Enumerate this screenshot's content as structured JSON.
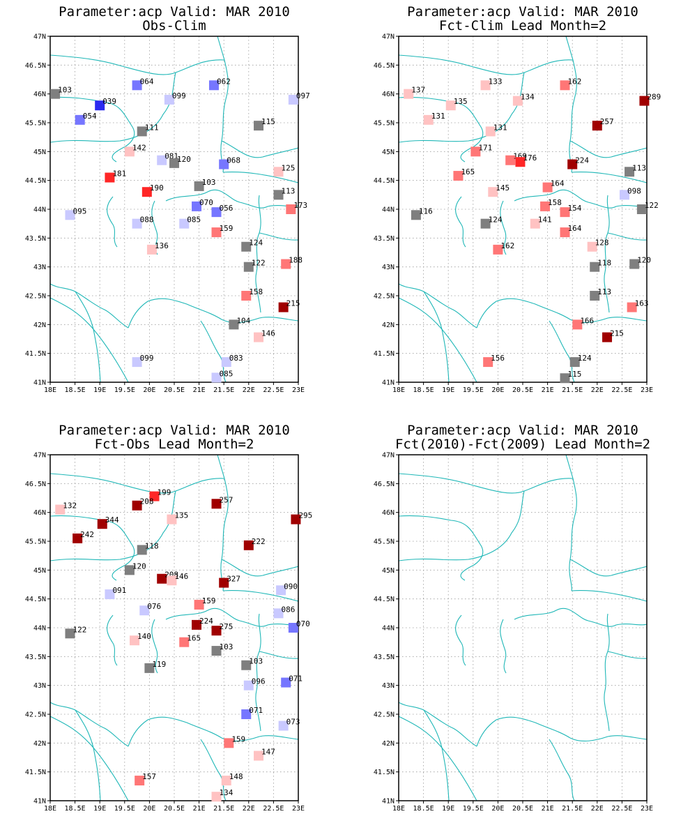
{
  "figure": {
    "lon_range": [
      18,
      23
    ],
    "lat_range": [
      41,
      47
    ],
    "x_ticks": [
      "18E",
      "18.5E",
      "19E",
      "19.5E",
      "20E",
      "20.5E",
      "21E",
      "21.5E",
      "22E",
      "22.5E",
      "23E"
    ],
    "y_ticks": [
      "41N",
      "41.5N",
      "42N",
      "42.5N",
      "43N",
      "43.5N",
      "44N",
      "44.5N",
      "45N",
      "45.5N",
      "46N",
      "46.5N",
      "47N"
    ],
    "grid": true,
    "colors": {
      "gray": "#7f7f7f",
      "blue_1": "#c9c9ff",
      "blue_2": "#7676ff",
      "blue_3": "#2a2af0",
      "red_1": "#ffc2c2",
      "red_2": "#ff7676",
      "red_3": "#ff2626",
      "red_4": "#a00000",
      "coast": "#1fb7b7"
    }
  },
  "panels": [
    {
      "title_line1": "Parameter:acp Valid: MAR 2010",
      "title_line2": "Obs-Clim",
      "stations": [
        {
          "lon": 18.1,
          "lat": 46.0,
          "label": "103",
          "color": "gray"
        },
        {
          "lon": 19.0,
          "lat": 45.8,
          "label": "039",
          "color": "blue_3"
        },
        {
          "lon": 18.6,
          "lat": 45.55,
          "label": "054",
          "color": "blue_2"
        },
        {
          "lon": 19.75,
          "lat": 46.15,
          "label": "064",
          "color": "blue_2"
        },
        {
          "lon": 20.4,
          "lat": 45.9,
          "label": "099",
          "color": "blue_1"
        },
        {
          "lon": 21.3,
          "lat": 46.15,
          "label": "062",
          "color": "blue_2"
        },
        {
          "lon": 22.9,
          "lat": 45.9,
          "label": "097",
          "color": "blue_1"
        },
        {
          "lon": 19.85,
          "lat": 45.35,
          "label": "111",
          "color": "gray"
        },
        {
          "lon": 22.2,
          "lat": 45.45,
          "label": "115",
          "color": "gray"
        },
        {
          "lon": 19.6,
          "lat": 45.0,
          "label": "142",
          "color": "red_1"
        },
        {
          "lon": 20.25,
          "lat": 44.85,
          "label": "081",
          "color": "blue_1"
        },
        {
          "lon": 20.5,
          "lat": 44.8,
          "label": "120",
          "color": "gray"
        },
        {
          "lon": 21.5,
          "lat": 44.78,
          "label": "068",
          "color": "blue_2"
        },
        {
          "lon": 22.6,
          "lat": 44.65,
          "label": "125",
          "color": "red_1"
        },
        {
          "lon": 19.2,
          "lat": 44.55,
          "label": "181",
          "color": "red_3"
        },
        {
          "lon": 19.95,
          "lat": 44.3,
          "label": "190",
          "color": "red_3"
        },
        {
          "lon": 21.0,
          "lat": 44.4,
          "label": "103",
          "color": "gray"
        },
        {
          "lon": 22.6,
          "lat": 44.25,
          "label": "113",
          "color": "gray"
        },
        {
          "lon": 20.95,
          "lat": 44.05,
          "label": "070",
          "color": "blue_2"
        },
        {
          "lon": 21.35,
          "lat": 43.95,
          "label": "056",
          "color": "blue_2"
        },
        {
          "lon": 22.85,
          "lat": 44.0,
          "label": "173",
          "color": "red_2"
        },
        {
          "lon": 18.4,
          "lat": 43.9,
          "label": "095",
          "color": "blue_1"
        },
        {
          "lon": 19.75,
          "lat": 43.75,
          "label": "088",
          "color": "blue_1"
        },
        {
          "lon": 20.7,
          "lat": 43.75,
          "label": "085",
          "color": "blue_1"
        },
        {
          "lon": 21.35,
          "lat": 43.6,
          "label": "159",
          "color": "red_2"
        },
        {
          "lon": 21.95,
          "lat": 43.35,
          "label": "124",
          "color": "gray"
        },
        {
          "lon": 20.05,
          "lat": 43.3,
          "label": "136",
          "color": "red_1"
        },
        {
          "lon": 22.0,
          "lat": 43.0,
          "label": "122",
          "color": "gray"
        },
        {
          "lon": 22.75,
          "lat": 43.05,
          "label": "188",
          "color": "red_2"
        },
        {
          "lon": 21.95,
          "lat": 42.5,
          "label": "158",
          "color": "red_2"
        },
        {
          "lon": 22.7,
          "lat": 42.3,
          "label": "215",
          "color": "red_4"
        },
        {
          "lon": 21.7,
          "lat": 42.0,
          "label": "104",
          "color": "gray"
        },
        {
          "lon": 22.2,
          "lat": 41.78,
          "label": "146",
          "color": "red_1"
        },
        {
          "lon": 19.75,
          "lat": 41.35,
          "label": "099",
          "color": "blue_1"
        },
        {
          "lon": 21.55,
          "lat": 41.35,
          "label": "083",
          "color": "blue_1"
        },
        {
          "lon": 21.35,
          "lat": 41.08,
          "label": "085",
          "color": "blue_1"
        }
      ]
    },
    {
      "title_line1": "Parameter:acp Valid: MAR 2010",
      "title_line2": "Fct-Clim Lead Month=2",
      "stations": [
        {
          "lon": 18.2,
          "lat": 46.0,
          "label": "137",
          "color": "red_1"
        },
        {
          "lon": 19.75,
          "lat": 46.15,
          "label": "133",
          "color": "red_1"
        },
        {
          "lon": 19.05,
          "lat": 45.8,
          "label": "135",
          "color": "red_1"
        },
        {
          "lon": 20.4,
          "lat": 45.88,
          "label": "134",
          "color": "red_1"
        },
        {
          "lon": 21.35,
          "lat": 46.15,
          "label": "162",
          "color": "red_2"
        },
        {
          "lon": 22.95,
          "lat": 45.88,
          "label": "289",
          "color": "red_4"
        },
        {
          "lon": 18.6,
          "lat": 45.55,
          "label": "131",
          "color": "red_1"
        },
        {
          "lon": 19.85,
          "lat": 45.35,
          "label": "131",
          "color": "red_1"
        },
        {
          "lon": 22.0,
          "lat": 45.45,
          "label": "257",
          "color": "red_4"
        },
        {
          "lon": 19.55,
          "lat": 45.0,
          "label": "171",
          "color": "red_2"
        },
        {
          "lon": 20.25,
          "lat": 44.85,
          "label": "169",
          "color": "red_2"
        },
        {
          "lon": 20.45,
          "lat": 44.82,
          "label": "176",
          "color": "red_3"
        },
        {
          "lon": 21.5,
          "lat": 44.78,
          "label": "224",
          "color": "red_4"
        },
        {
          "lon": 22.65,
          "lat": 44.65,
          "label": "113",
          "color": "gray"
        },
        {
          "lon": 19.2,
          "lat": 44.58,
          "label": "165",
          "color": "red_2"
        },
        {
          "lon": 19.9,
          "lat": 44.3,
          "label": "145",
          "color": "red_1"
        },
        {
          "lon": 21.0,
          "lat": 44.38,
          "label": "164",
          "color": "red_2"
        },
        {
          "lon": 22.55,
          "lat": 44.25,
          "label": "098",
          "color": "blue_1"
        },
        {
          "lon": 20.95,
          "lat": 44.05,
          "label": "158",
          "color": "red_2"
        },
        {
          "lon": 21.35,
          "lat": 43.95,
          "label": "154",
          "color": "red_2"
        },
        {
          "lon": 22.9,
          "lat": 44.0,
          "label": "122",
          "color": "gray"
        },
        {
          "lon": 18.35,
          "lat": 43.9,
          "label": "116",
          "color": "gray"
        },
        {
          "lon": 19.75,
          "lat": 43.75,
          "label": "124",
          "color": "gray"
        },
        {
          "lon": 20.75,
          "lat": 43.75,
          "label": "141",
          "color": "red_1"
        },
        {
          "lon": 21.35,
          "lat": 43.6,
          "label": "164",
          "color": "red_2"
        },
        {
          "lon": 21.9,
          "lat": 43.35,
          "label": "128",
          "color": "red_1"
        },
        {
          "lon": 20.0,
          "lat": 43.3,
          "label": "162",
          "color": "red_2"
        },
        {
          "lon": 21.95,
          "lat": 43.0,
          "label": "118",
          "color": "gray"
        },
        {
          "lon": 22.75,
          "lat": 43.05,
          "label": "120",
          "color": "gray"
        },
        {
          "lon": 21.95,
          "lat": 42.5,
          "label": "113",
          "color": "gray"
        },
        {
          "lon": 22.7,
          "lat": 42.3,
          "label": "163",
          "color": "red_2"
        },
        {
          "lon": 21.6,
          "lat": 42.0,
          "label": "166",
          "color": "red_2"
        },
        {
          "lon": 22.2,
          "lat": 41.78,
          "label": "215",
          "color": "red_4"
        },
        {
          "lon": 19.8,
          "lat": 41.35,
          "label": "156",
          "color": "red_2"
        },
        {
          "lon": 21.55,
          "lat": 41.35,
          "label": "124",
          "color": "gray"
        },
        {
          "lon": 21.35,
          "lat": 41.07,
          "label": "115",
          "color": "gray"
        }
      ]
    },
    {
      "title_line1": "Parameter:acp Valid: MAR 2010",
      "title_line2": "Fct-Obs Lead Month=2",
      "stations": [
        {
          "lon": 18.2,
          "lat": 46.05,
          "label": "132",
          "color": "red_1"
        },
        {
          "lon": 20.1,
          "lat": 46.28,
          "label": "199",
          "color": "red_3"
        },
        {
          "lon": 19.75,
          "lat": 46.12,
          "label": "208",
          "color": "red_4"
        },
        {
          "lon": 21.35,
          "lat": 46.15,
          "label": "257",
          "color": "red_4"
        },
        {
          "lon": 20.45,
          "lat": 45.88,
          "label": "135",
          "color": "red_1"
        },
        {
          "lon": 19.05,
          "lat": 45.8,
          "label": "344",
          "color": "red_4"
        },
        {
          "lon": 22.95,
          "lat": 45.88,
          "label": "295",
          "color": "red_4"
        },
        {
          "lon": 18.55,
          "lat": 45.55,
          "label": "242",
          "color": "red_4"
        },
        {
          "lon": 22.0,
          "lat": 45.43,
          "label": "222",
          "color": "red_4"
        },
        {
          "lon": 19.85,
          "lat": 45.35,
          "label": "118",
          "color": "gray"
        },
        {
          "lon": 19.6,
          "lat": 45.0,
          "label": "120",
          "color": "gray"
        },
        {
          "lon": 20.25,
          "lat": 44.85,
          "label": "208",
          "color": "red_4"
        },
        {
          "lon": 20.45,
          "lat": 44.82,
          "label": "146",
          "color": "red_1"
        },
        {
          "lon": 21.5,
          "lat": 44.78,
          "label": "327",
          "color": "red_4"
        },
        {
          "lon": 22.65,
          "lat": 44.65,
          "label": "090",
          "color": "blue_1"
        },
        {
          "lon": 19.2,
          "lat": 44.58,
          "label": "091",
          "color": "blue_1"
        },
        {
          "lon": 21.0,
          "lat": 44.4,
          "label": "159",
          "color": "red_2"
        },
        {
          "lon": 19.9,
          "lat": 44.3,
          "label": "076",
          "color": "blue_1"
        },
        {
          "lon": 22.6,
          "lat": 44.25,
          "label": "086",
          "color": "blue_1"
        },
        {
          "lon": 20.95,
          "lat": 44.05,
          "label": "224",
          "color": "red_4"
        },
        {
          "lon": 21.35,
          "lat": 43.95,
          "label": "275",
          "color": "red_4"
        },
        {
          "lon": 22.9,
          "lat": 44.0,
          "label": "070",
          "color": "blue_2"
        },
        {
          "lon": 18.4,
          "lat": 43.9,
          "label": "122",
          "color": "gray"
        },
        {
          "lon": 19.7,
          "lat": 43.78,
          "label": "140",
          "color": "red_1"
        },
        {
          "lon": 20.7,
          "lat": 43.75,
          "label": "165",
          "color": "red_2"
        },
        {
          "lon": 21.35,
          "lat": 43.6,
          "label": "103",
          "color": "gray"
        },
        {
          "lon": 21.95,
          "lat": 43.35,
          "label": "103",
          "color": "gray"
        },
        {
          "lon": 20.0,
          "lat": 43.3,
          "label": "119",
          "color": "gray"
        },
        {
          "lon": 22.0,
          "lat": 43.0,
          "label": "096",
          "color": "blue_1"
        },
        {
          "lon": 22.75,
          "lat": 43.05,
          "label": "071",
          "color": "blue_2"
        },
        {
          "lon": 21.95,
          "lat": 42.5,
          "label": "071",
          "color": "blue_2"
        },
        {
          "lon": 22.7,
          "lat": 42.3,
          "label": "073",
          "color": "blue_1"
        },
        {
          "lon": 21.6,
          "lat": 42.0,
          "label": "159",
          "color": "red_2"
        },
        {
          "lon": 22.2,
          "lat": 41.78,
          "label": "147",
          "color": "red_1"
        },
        {
          "lon": 19.8,
          "lat": 41.35,
          "label": "157",
          "color": "red_2"
        },
        {
          "lon": 21.55,
          "lat": 41.35,
          "label": "148",
          "color": "red_1"
        },
        {
          "lon": 21.35,
          "lat": 41.07,
          "label": "134",
          "color": "red_1"
        }
      ]
    },
    {
      "title_line1": "Parameter:acp Valid: MAR 2010",
      "title_line2": "Fct(2010)-Fct(2009) Lead Month=2",
      "stations": []
    }
  ]
}
